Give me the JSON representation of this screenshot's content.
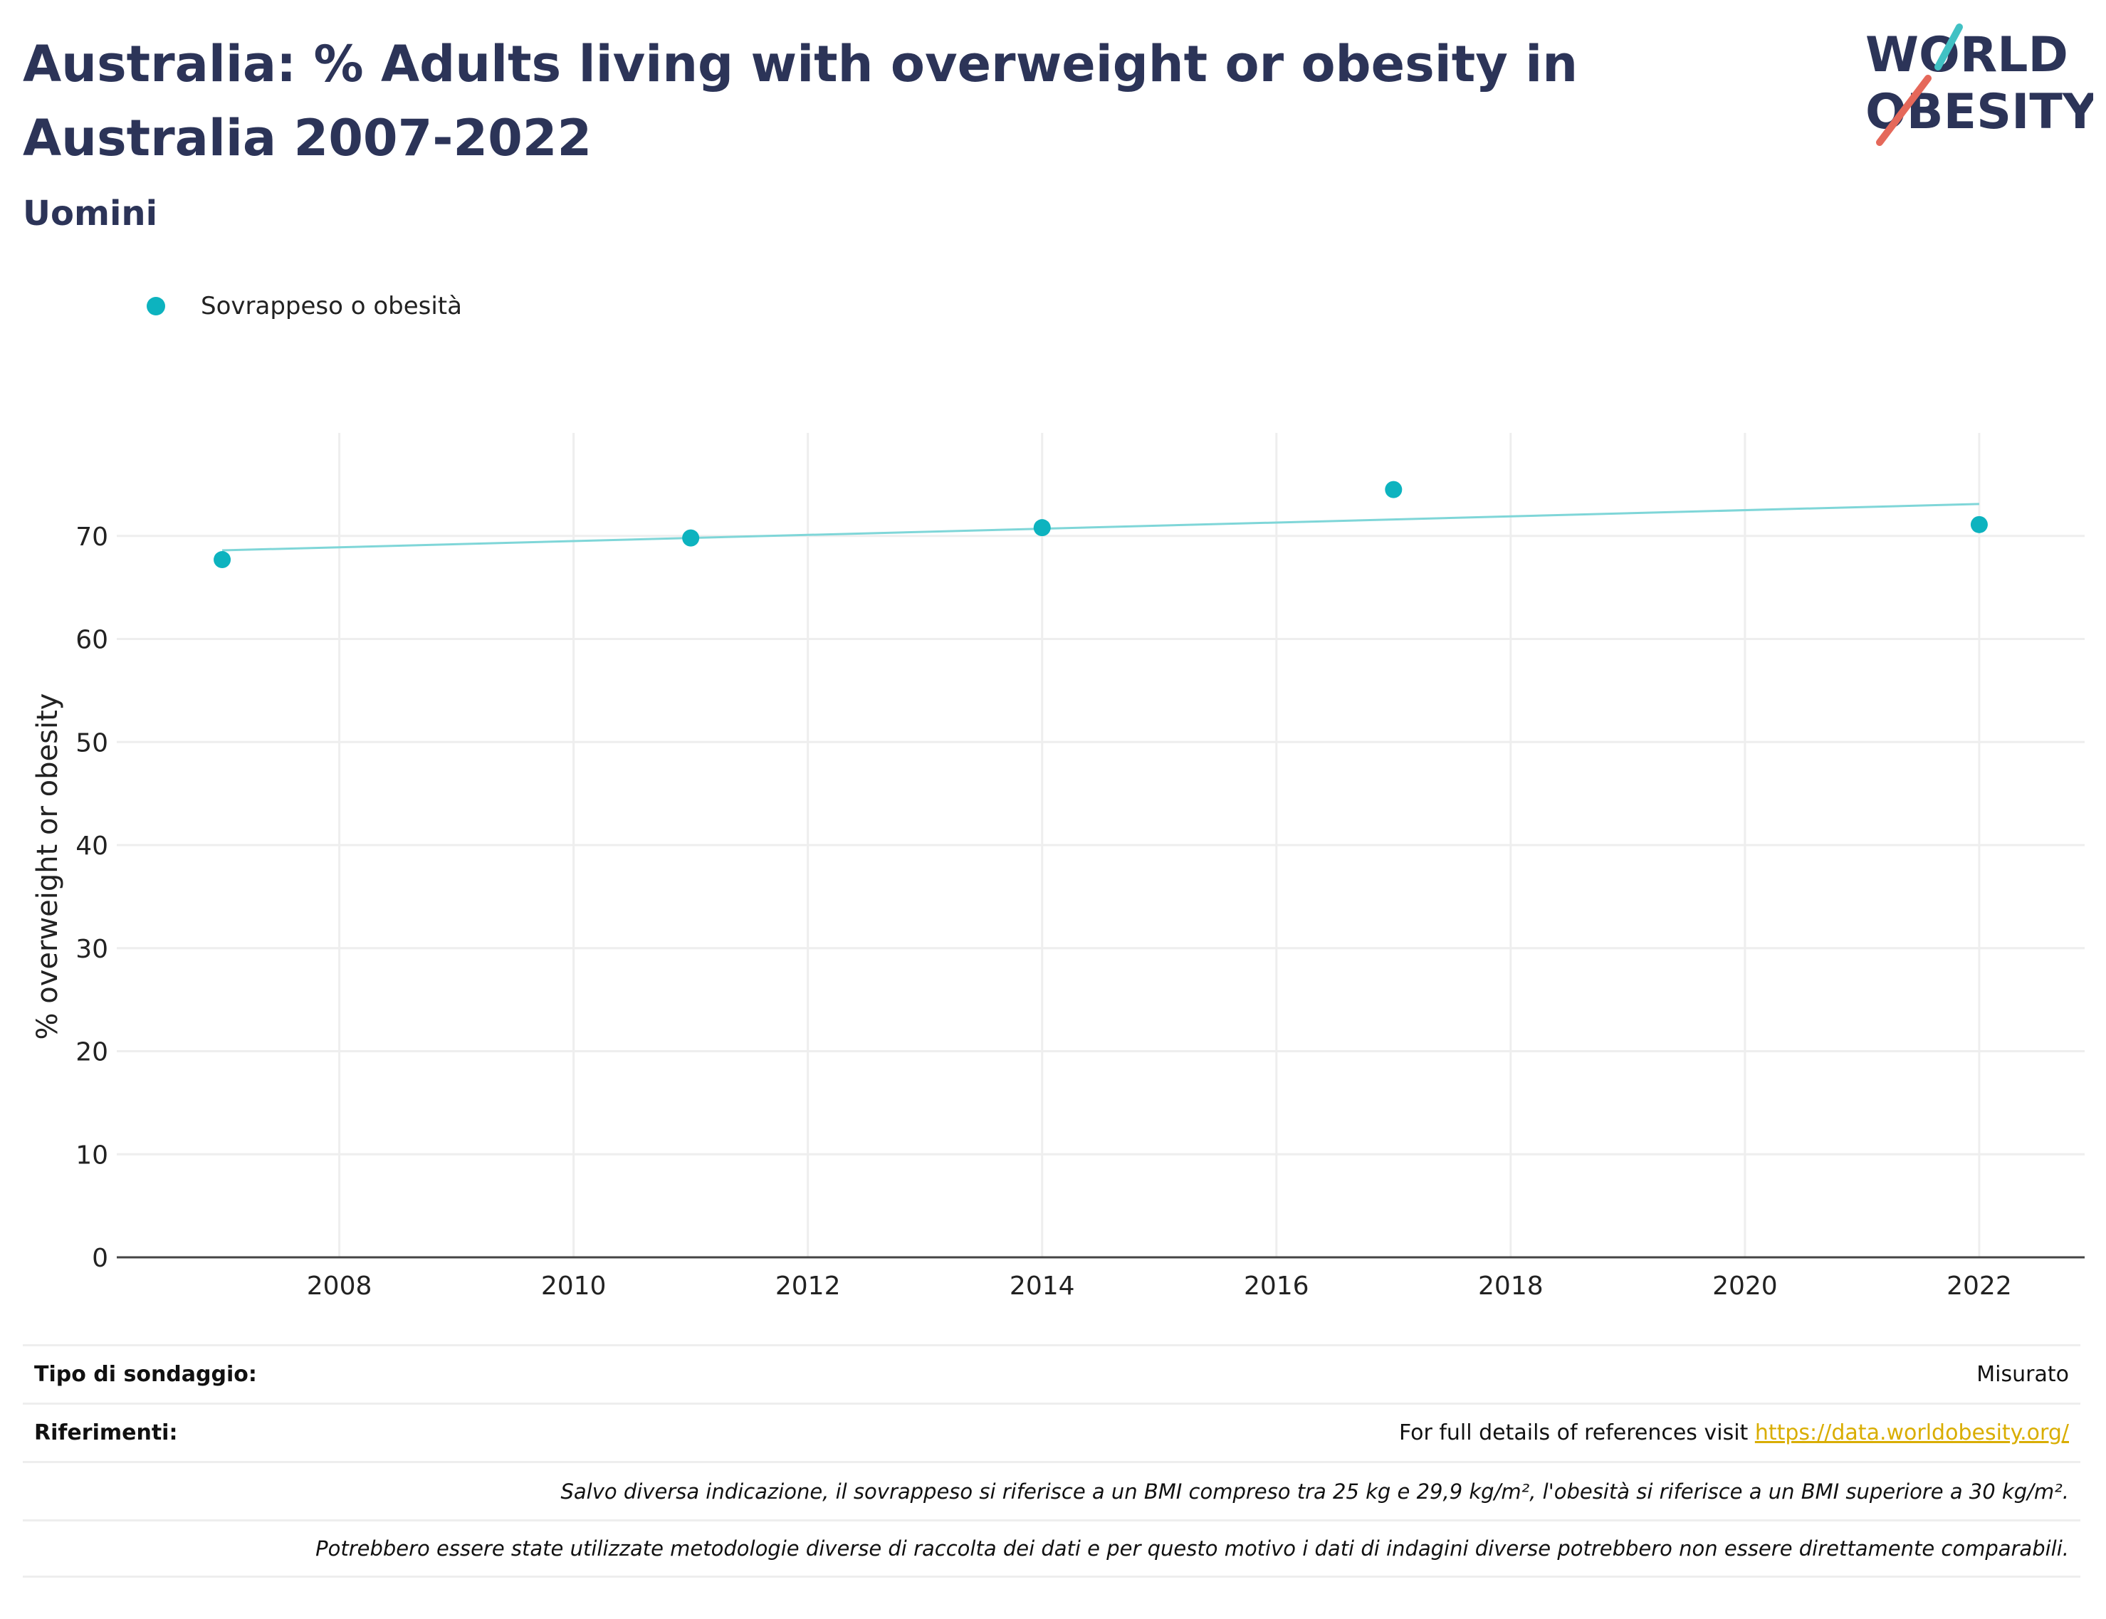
{
  "header": {
    "title": "Australia: % Adults living with overweight or obesity in Australia 2007-2022",
    "subtitle": "Uomini"
  },
  "logo": {
    "line1": "WORLD",
    "line2": "OBESITY"
  },
  "colors": {
    "series": "#0db3bf",
    "trend": "#7fd6d8",
    "title": "#2c3458",
    "link": "#d9ad00",
    "slash_teal": "#41c1c4",
    "slash_red": "#e5685a"
  },
  "chart_data": {
    "type": "scatter",
    "ylabel": "% overweight or obesity",
    "xlabel": "",
    "xlim": [
      2006.1,
      2022.9
    ],
    "ylim": [
      0,
      80
    ],
    "x_ticks": [
      2008,
      2010,
      2012,
      2014,
      2016,
      2018,
      2020,
      2022
    ],
    "y_ticks": [
      0,
      10,
      20,
      30,
      40,
      50,
      60,
      70
    ],
    "grid": true,
    "legend_position": "top-left",
    "series": [
      {
        "name": "Sovrappeso o obesità",
        "x": [
          2007,
          2011,
          2014,
          2017,
          2022
        ],
        "y": [
          67.7,
          69.8,
          70.8,
          74.5,
          71.1
        ]
      }
    ],
    "trendline": {
      "x": [
        2007,
        2022
      ],
      "y": [
        68.6,
        73.1
      ]
    }
  },
  "info": {
    "survey_label": "Tipo di sondaggio:",
    "survey_value": "Misurato",
    "refs_label": "Riferimenti:",
    "refs_text": "For full details of references visit",
    "refs_link": "https://data.worldobesity.org/",
    "note1": "Salvo diversa indicazione, il sovrappeso si riferisce a un BMI compreso tra 25 kg e 29,9 kg/m², l'obesità si riferisce a un BMI superiore a 30 kg/m².",
    "note2": "Potrebbero essere state utilizzate metodologie diverse di raccolta dei dati e per questo motivo i dati di indagini diverse potrebbero non essere direttamente comparabili."
  }
}
